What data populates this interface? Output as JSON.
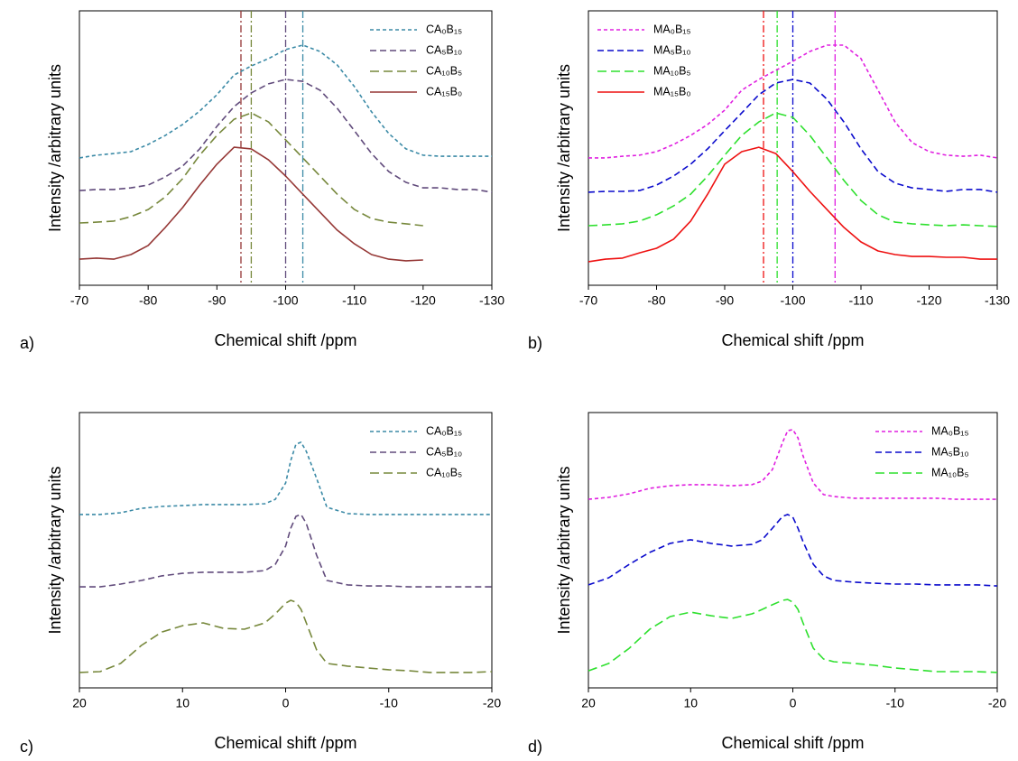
{
  "chart_data": [
    {
      "type": "line",
      "panel_label": "a)",
      "x_label": "Chemical shift /ppm",
      "y_label": "Intensity /arbitrary units",
      "xlim": [
        -70,
        -130
      ],
      "ylim": [
        0,
        100
      ],
      "xticks": [
        -70,
        -80,
        -90,
        -100,
        -110,
        -120,
        -130
      ],
      "legend": "upper right",
      "x": [
        -70,
        -72.5,
        -75,
        -77.5,
        -80,
        -82.5,
        -85,
        -87.5,
        -90,
        -92.5,
        -95,
        -97.5,
        -100,
        -102.5,
        -105,
        -107.5,
        -110,
        -112.5,
        -115,
        -117.5,
        -120,
        -122.5,
        -125,
        -127.5,
        -130
      ],
      "series": [
        {
          "name": "CA₀B₁₅",
          "color": "#3b8aa6",
          "dash": "4,3",
          "values": [
            46.4,
            47.4,
            48.0,
            48.7,
            51.3,
            54.6,
            58.6,
            63.5,
            69.4,
            76.6,
            79.9,
            82.6,
            85.9,
            87.5,
            85.2,
            80.3,
            72.4,
            63.2,
            55.3,
            49.7,
            47.4,
            47.0,
            47.0,
            47.0,
            47.0
          ]
        },
        {
          "name": "CA₅B₁₀",
          "color": "#604a7b",
          "dash": "7,4",
          "values": [
            34.5,
            34.9,
            34.9,
            35.5,
            36.5,
            39.5,
            43.4,
            49.7,
            57.9,
            65.1,
            70.1,
            73.4,
            75.0,
            74.3,
            71.1,
            64.5,
            56.3,
            48.0,
            41.4,
            37.5,
            35.5,
            35.5,
            34.9,
            34.9,
            33.9
          ]
        },
        {
          "name": "CA₁₀B₅",
          "color": "#77883c",
          "dash": "10,5",
          "values": [
            22.7,
            23.0,
            23.4,
            25.0,
            27.6,
            32.2,
            38.8,
            47.4,
            54.6,
            60.5,
            62.8,
            59.5,
            53.0,
            46.4,
            39.8,
            33.2,
            27.6,
            24.3,
            23.0,
            22.4,
            21.7,
            null,
            null,
            null,
            null
          ]
        },
        {
          "name": "CA₁₅B₀",
          "color": "#953735",
          "dash": "none",
          "values": [
            9.5,
            9.9,
            9.5,
            11.2,
            14.5,
            21.1,
            28.3,
            36.5,
            44.1,
            50.3,
            49.7,
            45.7,
            39.8,
            33.2,
            26.6,
            20.1,
            15.1,
            11.2,
            9.5,
            8.9,
            9.2,
            null,
            null,
            null,
            null
          ]
        }
      ],
      "markers": [
        {
          "x": -93.5,
          "color": "#953735"
        },
        {
          "x": -95,
          "color": "#77883c"
        },
        {
          "x": -100,
          "color": "#604a7b"
        },
        {
          "x": -102.5,
          "color": "#3b8aa6"
        }
      ]
    },
    {
      "type": "line",
      "panel_label": "b)",
      "x_label": "Chemical shift /ppm",
      "y_label": "Intensity /arbitrary units",
      "xlim": [
        -70,
        -130
      ],
      "ylim": [
        0,
        100
      ],
      "xticks": [
        -70,
        -80,
        -90,
        -100,
        -110,
        -120,
        -130
      ],
      "legend": "upper left",
      "x": [
        -70,
        -72.5,
        -75,
        -77.5,
        -80,
        -82.5,
        -85,
        -87.5,
        -90,
        -92.5,
        -95,
        -97.5,
        -100,
        -102.5,
        -105,
        -107.5,
        -110,
        -112.5,
        -115,
        -117.5,
        -120,
        -122.5,
        -125,
        -127.5,
        -130
      ],
      "series": [
        {
          "name": "MA₀B₁₅",
          "color": "#e020e0",
          "dash": "4,3",
          "values": [
            46.4,
            46.4,
            47.0,
            47.4,
            48.7,
            51.3,
            54.6,
            58.6,
            63.8,
            71.1,
            75.0,
            78.3,
            81.6,
            85.2,
            87.5,
            87.5,
            82.6,
            71.1,
            59.5,
            52.0,
            48.7,
            47.4,
            47.0,
            47.4,
            46.4
          ]
        },
        {
          "name": "MA₅B₁₀",
          "color": "#0a0acc",
          "dash": "7,4",
          "values": [
            33.9,
            34.2,
            34.2,
            34.5,
            36.5,
            39.8,
            44.1,
            49.7,
            56.3,
            62.8,
            69.4,
            73.7,
            75.0,
            73.7,
            67.8,
            59.5,
            49.7,
            41.4,
            37.2,
            35.5,
            34.9,
            34.2,
            34.9,
            34.9,
            33.9
          ]
        },
        {
          "name": "MA₁₀B₅",
          "color": "#2ee02e",
          "dash": "10,5",
          "values": [
            21.7,
            22.0,
            22.4,
            23.4,
            25.7,
            28.9,
            33.2,
            39.8,
            47.4,
            54.6,
            59.5,
            62.8,
            61.2,
            54.6,
            46.4,
            38.2,
            30.9,
            25.7,
            23.0,
            22.4,
            22.0,
            21.7,
            22.0,
            21.7,
            21.4
          ]
        },
        {
          "name": "MA₁₅B₀",
          "color": "#ee1111",
          "dash": "none",
          "values": [
            8.6,
            9.5,
            9.9,
            11.8,
            13.5,
            16.8,
            23.4,
            33.2,
            44.1,
            48.7,
            50.3,
            48.0,
            41.4,
            34.2,
            27.6,
            21.1,
            15.8,
            12.5,
            11.2,
            10.5,
            10.5,
            10.2,
            10.2,
            9.5,
            9.5
          ]
        }
      ],
      "markers": [
        {
          "x": -95.7,
          "color": "#ee1111"
        },
        {
          "x": -97.7,
          "color": "#2ee02e"
        },
        {
          "x": -100,
          "color": "#0a0acc"
        },
        {
          "x": -106.2,
          "color": "#e020e0"
        }
      ]
    },
    {
      "type": "line",
      "panel_label": "c)",
      "x_label": "Chemical shift /ppm",
      "y_label": "Intensity /arbitrary units",
      "xlim": [
        20,
        -20
      ],
      "ylim": [
        0,
        100
      ],
      "xticks": [
        20,
        10,
        0,
        -10,
        -20
      ],
      "legend": "upper right",
      "x": [
        20,
        18,
        16,
        14,
        12,
        10,
        8,
        6,
        4,
        2,
        1,
        0,
        -0.5,
        -1,
        -1.5,
        -2,
        -3,
        -4,
        -6,
        -8,
        -10,
        -12,
        -14,
        -16,
        -18,
        -20
      ],
      "series": [
        {
          "name": "CA₀B₁₅",
          "color": "#3b8aa6",
          "dash": "4,3",
          "values": [
            63.0,
            63.0,
            63.6,
            65.2,
            65.9,
            66.2,
            66.6,
            66.6,
            66.6,
            66.9,
            68.5,
            74.4,
            82.6,
            88.5,
            89.2,
            85.9,
            76.1,
            65.6,
            63.3,
            63.0,
            63.0,
            63.0,
            63.0,
            63.0,
            63.0,
            63.0
          ]
        },
        {
          "name": "CA₅B₁₀",
          "color": "#604a7b",
          "dash": "7,4",
          "values": [
            36.7,
            36.7,
            37.7,
            39.0,
            40.7,
            41.6,
            42.0,
            42.0,
            42.0,
            42.6,
            44.9,
            51.5,
            58.0,
            62.3,
            63.0,
            59.7,
            48.2,
            39.0,
            37.4,
            37.0,
            37.0,
            36.7,
            36.7,
            36.7,
            36.7,
            36.7
          ]
        },
        {
          "name": "CA₁₀B₅",
          "color": "#77883c",
          "dash": "10,5",
          "values": [
            5.6,
            5.9,
            8.9,
            15.4,
            20.3,
            22.6,
            23.6,
            21.6,
            21.3,
            23.6,
            26.9,
            30.8,
            31.8,
            31.1,
            28.5,
            23.6,
            13.8,
            8.9,
            7.9,
            7.2,
            6.6,
            6.2,
            5.6,
            5.6,
            5.6,
            5.9
          ]
        }
      ]
    },
    {
      "type": "line",
      "panel_label": "d)",
      "x_label": "Chemical shift /ppm",
      "y_label": "Intensity /arbitrary units",
      "xlim": [
        20,
        -20
      ],
      "ylim": [
        0,
        100
      ],
      "xticks": [
        20,
        10,
        0,
        -10,
        -20
      ],
      "legend": "upper right",
      "x": [
        20,
        18,
        16,
        14,
        12,
        10,
        8,
        6,
        4,
        3,
        2,
        1,
        0.5,
        0,
        -0.5,
        -1,
        -2,
        -3,
        -4,
        -6,
        -8,
        -10,
        -12,
        -14,
        -16,
        -18,
        -20
      ],
      "series": [
        {
          "name": "MA₀B₁₅",
          "color": "#e020e0",
          "dash": "4,3",
          "values": [
            68.5,
            69.2,
            70.5,
            72.5,
            73.4,
            73.8,
            73.8,
            73.4,
            73.8,
            75.1,
            79.3,
            89.2,
            93.4,
            93.8,
            90.8,
            84.3,
            74.4,
            70.2,
            69.5,
            68.9,
            68.9,
            68.9,
            68.9,
            68.9,
            68.5,
            68.5,
            68.5
          ]
        },
        {
          "name": "MA₅B₁₀",
          "color": "#0a0acc",
          "dash": "7,4",
          "values": [
            37.4,
            40.0,
            44.9,
            49.2,
            52.5,
            53.8,
            52.5,
            51.5,
            52.1,
            53.8,
            58.0,
            62.3,
            63.0,
            62.0,
            58.0,
            53.1,
            44.9,
            40.7,
            39.0,
            38.4,
            38.0,
            37.7,
            37.7,
            37.4,
            37.4,
            37.4,
            37.0
          ]
        },
        {
          "name": "MA₁₀B₅",
          "color": "#2ee02e",
          "dash": "10,5",
          "values": [
            6.2,
            8.9,
            14.4,
            21.3,
            25.9,
            27.5,
            26.2,
            25.2,
            26.9,
            28.5,
            30.2,
            31.8,
            32.1,
            31.1,
            28.5,
            23.6,
            14.4,
            10.5,
            9.5,
            8.9,
            8.2,
            7.2,
            6.6,
            5.9,
            5.9,
            5.9,
            5.6
          ]
        }
      ]
    }
  ]
}
